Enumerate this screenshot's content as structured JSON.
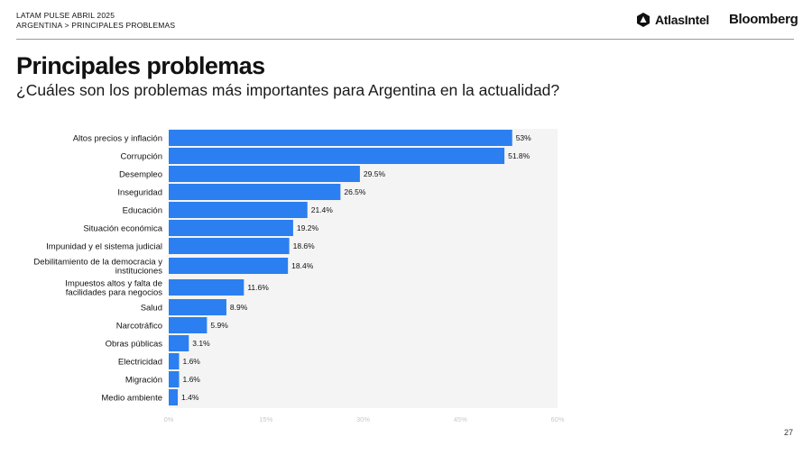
{
  "header": {
    "line1": "LATAM PULSE ABRIL 2025",
    "line2": "ARGENTINA > PRINCIPALES PROBLEMAS",
    "brand_atlas": "AtlasIntel",
    "brand_bloomberg": "Bloomberg"
  },
  "title": "Principales problemas",
  "subtitle": "¿Cuáles son los problemas más importantes para Argentina en la actualidad?",
  "page_number": "27",
  "colors": {
    "bar": "#2b7ff0",
    "track": "#f4f4f4",
    "text": "#111111",
    "tick": "#c8c8c8"
  },
  "chart_data": {
    "type": "bar",
    "orientation": "horizontal",
    "categories": [
      [
        "Altos precios y inflación"
      ],
      [
        "Corrupción"
      ],
      [
        "Desempleo"
      ],
      [
        "Inseguridad"
      ],
      [
        "Educación"
      ],
      [
        "Situación económica"
      ],
      [
        "Impunidad y el sistema judicial"
      ],
      [
        "Debilitamiento de la democracia y",
        "instituciones"
      ],
      [
        "Impuestos altos y falta de",
        "facilidades para negocios"
      ],
      [
        "Salud"
      ],
      [
        "Narcotráfico"
      ],
      [
        "Obras públicas"
      ],
      [
        "Electricidad"
      ],
      [
        "Migración"
      ],
      [
        "Medio ambiente"
      ]
    ],
    "values": [
      53,
      51.8,
      29.5,
      26.5,
      21.4,
      19.2,
      18.6,
      18.4,
      11.6,
      8.9,
      5.9,
      3.1,
      1.6,
      1.6,
      1.4
    ],
    "value_labels": [
      "53%",
      "51.8%",
      "29.5%",
      "26.5%",
      "21.4%",
      "19.2%",
      "18.6%",
      "18.4%",
      "11.6%",
      "8.9%",
      "5.9%",
      "3.1%",
      "1.6%",
      "1.6%",
      "1.4%"
    ],
    "xlim": [
      0,
      60
    ],
    "xticks": [
      0,
      15,
      30,
      45,
      60
    ],
    "xtick_labels": [
      "0%",
      "15%",
      "30%",
      "45%",
      "60%"
    ],
    "grid": false
  }
}
